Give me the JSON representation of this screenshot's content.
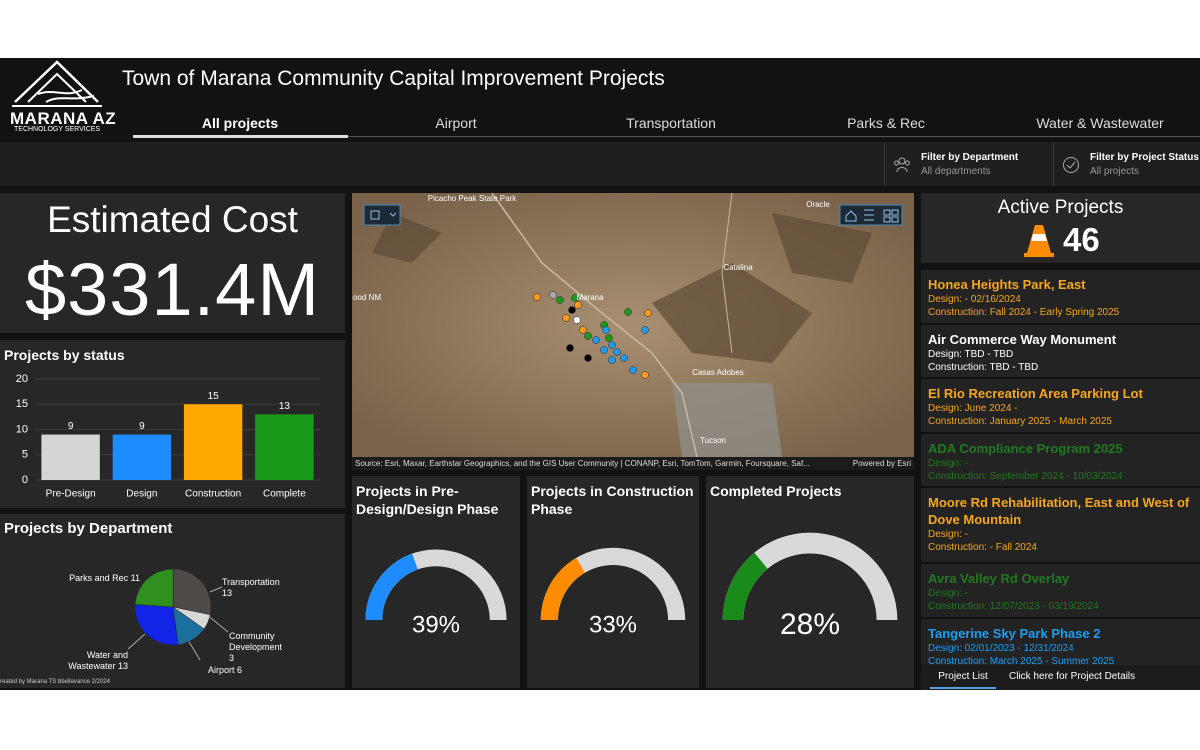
{
  "header": {
    "logo_name": "MARANA AZ",
    "logo_sub": "TECHNOLOGY SERVICES",
    "title": "Town of Marana Community Capital Improvement Projects"
  },
  "tabs": [
    "All projects",
    "Airport",
    "Transportation",
    "Parks & Rec",
    "Water & Wastewater"
  ],
  "filters": [
    {
      "label": "Filter by Department",
      "value": "All departments"
    },
    {
      "label": "Filter by Project Status",
      "value": "All projects"
    }
  ],
  "cost": {
    "title": "Estimated Cost",
    "value": "$331.4M"
  },
  "map": {
    "labels": [
      "Picacho Peak State Park",
      "Marana",
      "Catalina",
      "Casas Adobes",
      "Tucson",
      "Oracle",
      "ood NM"
    ],
    "attribution": "Source: Esri, Maxar, Earthstar Geographics, and the GIS User Community | CONANP, Esri, TomTom, Garmin, Foursquare, Saf...",
    "powered": "Powered by Esri"
  },
  "chart_data": [
    {
      "type": "bar",
      "title": "Projects by status",
      "categories": [
        "Pre-Design",
        "Design",
        "Construction",
        "Complete"
      ],
      "values": [
        9,
        9,
        15,
        13
      ],
      "colors": [
        "#d3d6d3",
        "#1e8cff",
        "#ffa800",
        "#1a9a1a"
      ],
      "ylim": [
        0,
        20
      ],
      "yticks": [
        0,
        5,
        10,
        15,
        20
      ],
      "grid": true
    },
    {
      "type": "pie",
      "title": "Projects by Department",
      "categories": [
        "Transportation",
        "Community Development",
        "Airport",
        "Water and Wastewater",
        "Parks and Rec"
      ],
      "values": [
        13,
        3,
        6,
        13,
        11
      ],
      "colors": [
        "#4d4a47",
        "#d8d8d8",
        "#1a6f9c",
        "#1424e6",
        "#2f8f1f"
      ]
    },
    {
      "type": "gauge",
      "title": "Projects in Pre-Design/Design Phase",
      "values": [
        39
      ],
      "value_labels": [
        "39%"
      ],
      "ylim": [
        0,
        100
      ],
      "color": "#1e8cff"
    },
    {
      "type": "gauge",
      "title": "Projects in Construction Phase",
      "values": [
        33
      ],
      "value_labels": [
        "33%"
      ],
      "ylim": [
        0,
        100
      ],
      "color": "#ff8c00"
    },
    {
      "type": "gauge",
      "title": "Completed Projects",
      "values": [
        28
      ],
      "value_labels": [
        "28%"
      ],
      "ylim": [
        0,
        100
      ],
      "color": "#1a8a1a"
    }
  ],
  "active": {
    "title": "Active Projects",
    "count": 46
  },
  "projects": [
    {
      "name": "Honea Heights Park, East",
      "design": "Design: - 02/16/2024",
      "construction": "Construction: Fall 2024 - Early Spring 2025",
      "color": "#f5a623"
    },
    {
      "name": "Air Commerce Way Monument",
      "design": "Design: TBD - TBD",
      "construction": "Construction: TBD - TBD",
      "color": "#ffffff"
    },
    {
      "name": "El Rio Recreation Area Parking Lot",
      "design": "Design: June 2024 -",
      "construction": "Construction: January 2025 - March 2025",
      "color": "#f5a623"
    },
    {
      "name": "ADA Compliance Program 2025",
      "design": "Design: -",
      "construction": "Construction: September 2024 - 10/03/2024",
      "color": "#1f7a1f"
    },
    {
      "name": "Moore Rd Rehabilitation, East and West of Dove Mountain",
      "design": "Design: -",
      "construction": "Construction: - Fall 2024",
      "color": "#f5a623"
    },
    {
      "name": "Avra Valley Rd Overlay",
      "design": "Design: -",
      "construction": "Construction: 12/07/2023 - 03/19/2024",
      "color": "#1f7a1f"
    },
    {
      "name": "Tangerine Sky Park Phase 2",
      "design": "Design: 02/01/2023 - 12/31/2024",
      "construction": "Construction: March 2025 - Summer 2025",
      "color": "#1e9cf0"
    }
  ],
  "footer": {
    "tabs": [
      "Project List",
      "Click here for Project Details"
    ],
    "credit": "reated by Marana TS bbellavance 2/2024"
  }
}
